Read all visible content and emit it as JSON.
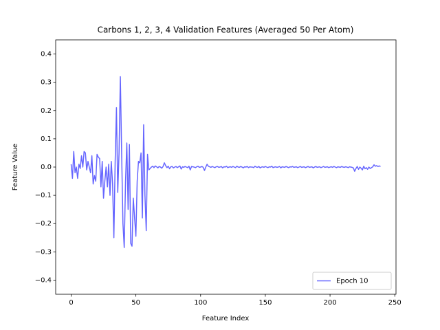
{
  "chart_data": {
    "type": "line",
    "title": "Carbons 1, 2, 3, 4 Validation Features (Averaged 50 Per Atom)",
    "x_label": "Feature Index",
    "y_label": "Feature Value",
    "x": [
      0,
      1,
      2,
      3,
      4,
      5,
      6,
      7,
      8,
      9,
      10,
      11,
      12,
      13,
      14,
      15,
      16,
      17,
      18,
      19,
      20,
      21,
      22,
      23,
      24,
      25,
      26,
      27,
      28,
      29,
      30,
      31,
      32,
      33,
      34,
      35,
      36,
      37,
      38,
      39,
      40,
      41,
      42,
      43,
      44,
      45,
      46,
      47,
      48,
      49,
      50,
      51,
      52,
      53,
      54,
      55,
      56,
      57,
      58,
      59,
      60,
      61,
      62,
      63,
      64,
      65,
      66,
      67,
      68,
      69,
      70,
      71,
      72,
      73,
      74,
      75,
      76,
      77,
      78,
      79,
      80,
      81,
      82,
      83,
      84,
      85,
      86,
      87,
      88,
      89,
      90,
      91,
      92,
      93,
      94,
      95,
      96,
      97,
      98,
      99,
      100,
      101,
      102,
      103,
      104,
      105,
      106,
      107,
      108,
      109,
      110,
      111,
      112,
      113,
      114,
      115,
      116,
      117,
      118,
      119,
      120,
      121,
      122,
      123,
      124,
      125,
      126,
      127,
      128,
      129,
      130,
      131,
      132,
      133,
      134,
      135,
      136,
      137,
      138,
      139,
      140,
      141,
      142,
      143,
      144,
      145,
      146,
      147,
      148,
      149,
      150,
      151,
      152,
      153,
      154,
      155,
      156,
      157,
      158,
      159,
      160,
      161,
      162,
      163,
      164,
      165,
      166,
      167,
      168,
      169,
      170,
      171,
      172,
      173,
      174,
      175,
      176,
      177,
      178,
      179,
      180,
      181,
      182,
      183,
      184,
      185,
      186,
      187,
      188,
      189,
      190,
      191,
      192,
      193,
      194,
      195,
      196,
      197,
      198,
      199,
      200,
      201,
      202,
      203,
      204,
      205,
      206,
      207,
      208,
      209,
      210,
      211,
      212,
      213,
      214,
      215,
      216,
      217,
      218,
      219,
      220,
      221,
      222,
      223,
      224,
      225,
      226,
      227,
      228,
      229,
      230,
      231,
      232,
      233,
      234,
      235,
      236,
      237,
      238,
      239
    ],
    "series": [
      {
        "name": "Epoch 10",
        "color": "#6666ff",
        "values": [
          0.01,
          -0.04,
          0.055,
          -0.02,
          0.0,
          -0.04,
          0.01,
          -0.005,
          0.04,
          0.0,
          0.055,
          0.05,
          -0.01,
          0.02,
          0.0,
          -0.02,
          0.04,
          -0.06,
          -0.03,
          -0.05,
          0.045,
          0.035,
          0.03,
          -0.07,
          0.02,
          -0.11,
          -0.05,
          0.0,
          -0.07,
          0.01,
          -0.1,
          0.02,
          -0.06,
          -0.25,
          0.02,
          0.21,
          -0.09,
          0.05,
          0.32,
          0.05,
          -0.2,
          -0.285,
          -0.05,
          0.085,
          -0.15,
          0.08,
          -0.27,
          -0.28,
          -0.11,
          -0.18,
          -0.245,
          -0.05,
          0.02,
          0.015,
          0.05,
          -0.18,
          0.15,
          -0.1,
          -0.225,
          0.045,
          -0.01,
          -0.005,
          0.0,
          0.003,
          -0.002,
          0.004,
          0.001,
          -0.003,
          0.002,
          0.0,
          -0.004,
          0.002,
          0.015,
          0.005,
          -0.002,
          0.003,
          -0.006,
          0.001,
          0.002,
          -0.003,
          0.0,
          0.002,
          -0.002,
          0.001,
          0.004,
          -0.007,
          0.001,
          -0.001,
          0.002,
          0.0,
          -0.002,
          0.003,
          -0.01,
          0.002,
          0.001,
          0.0,
          -0.002,
          0.001,
          0.003,
          -0.001,
          0.0,
          0.002,
          -0.001,
          -0.012,
          0.0,
          0.01,
          0.003,
          0.001,
          -0.001,
          0.002,
          0.0,
          -0.002,
          0.001,
          0.002,
          -0.001,
          0.0,
          0.002,
          -0.003,
          0.001,
          0.0,
          0.003,
          -0.002,
          0.0,
          0.001,
          -0.001,
          0.002,
          0.0,
          -0.002,
          0.003,
          0.0,
          -0.001,
          0.002,
          0.0,
          -0.003,
          0.001,
          0.0,
          0.002,
          -0.002,
          0.001,
          0.0,
          0.0,
          -0.002,
          0.003,
          0.0,
          -0.001,
          0.002,
          -0.003,
          0.0,
          0.001,
          -0.001,
          0.002,
          0.0,
          -0.002,
          0.001,
          0.0,
          0.003,
          -0.002,
          0.0,
          0.001,
          -0.001,
          0.0,
          0.002,
          -0.003,
          0.001,
          0.0,
          -0.001,
          0.002,
          0.0,
          -0.002,
          0.001,
          0.0,
          0.002,
          -0.001,
          0.0,
          0.001,
          -0.002,
          0.0,
          0.002,
          -0.001,
          0.0,
          0.001,
          -0.002,
          0.0,
          0.002,
          -0.001,
          0.0,
          0.001,
          -0.003,
          0.0,
          0.002,
          -0.001,
          0.0,
          0.001,
          -0.002,
          0.0,
          0.002,
          -0.001,
          0.0,
          0.001,
          -0.002,
          0.0,
          0.001,
          -0.001,
          0.002,
          0.0,
          -0.002,
          0.001,
          0.0,
          -0.001,
          0.002,
          0.0,
          -0.001,
          0.001,
          0.0,
          -0.002,
          0.001,
          0.0,
          -0.001,
          -0.003,
          -0.015,
          -0.005,
          0.002,
          -0.008,
          0.0,
          -0.004,
          -0.01,
          0.003,
          -0.006,
          -0.002,
          -0.008,
          0.0,
          -0.005,
          -0.002,
          0.001,
          0.008,
          0.003,
          0.005,
          0.002,
          0.004,
          0.002
        ]
      }
    ],
    "xlim": [
      -11.95,
      250.95
    ],
    "xticks": [
      0,
      50,
      100,
      150,
      200,
      250
    ],
    "ylim": [
      -0.45,
      0.45
    ],
    "yticks": [
      {
        "value": -0.4,
        "label": "−0.4"
      },
      {
        "value": -0.3,
        "label": "−0.3"
      },
      {
        "value": -0.2,
        "label": "−0.2"
      },
      {
        "value": -0.1,
        "label": "−0.1"
      },
      {
        "value": 0,
        "label": "0.0"
      },
      0.1,
      0.2,
      0.3,
      0.4
    ],
    "grid": false,
    "legend": "lower right"
  }
}
